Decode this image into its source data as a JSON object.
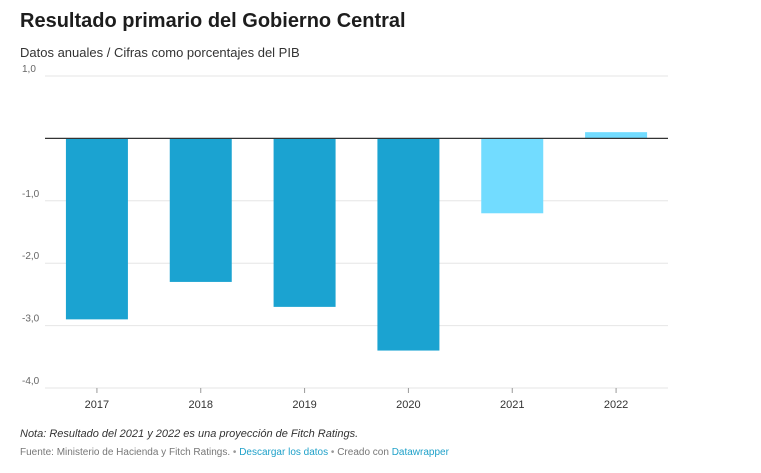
{
  "chart": {
    "title": "Resultado primario del Gobierno Central",
    "subtitle": "Datos anuales / Cifras como porcentajes del PIB"
  },
  "chart_data": {
    "type": "bar",
    "title": "Resultado primario del Gobierno Central",
    "subtitle": "Datos anuales / Cifras como porcentajes del PIB",
    "categories": [
      "2017",
      "2018",
      "2019",
      "2020",
      "2021",
      "2022"
    ],
    "values": [
      -2.9,
      -2.3,
      -2.7,
      -3.4,
      -1.2,
      0.1
    ],
    "projected": [
      false,
      false,
      false,
      false,
      true,
      true
    ],
    "ylim": [
      -4.0,
      1.0
    ],
    "yticks": [
      1.0,
      -1.0,
      -2.0,
      -3.0,
      -4.0
    ],
    "ytick_labels": [
      "1,0",
      "-1,0",
      "-2,0",
      "-3,0",
      "-4,0"
    ],
    "xlabel": "",
    "ylabel": "",
    "grid": true,
    "colors": {
      "actual": "#1ba3d1",
      "projected": "#72dcff",
      "grid": "#e6e6e6",
      "zero": "#333333"
    }
  },
  "footer": {
    "note": "Nota: Resultado del 2021 y 2022 es una proyección de Fitch Ratings.",
    "source": "Fuente: Ministerio de Hacienda y Fitch Ratings.",
    "separator": "•",
    "download_link": "Descargar los datos",
    "created_with": "Creado con",
    "tool_link": "Datawrapper"
  }
}
